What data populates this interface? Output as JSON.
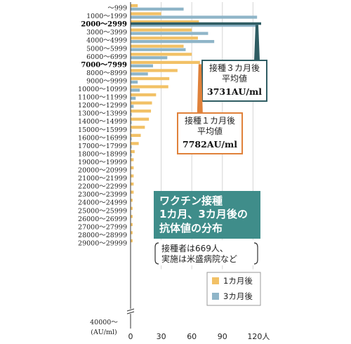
{
  "chart_data": {
    "type": "bar",
    "orientation": "horizontal",
    "categories": [
      "～999",
      "1000～1999",
      "2000～2999",
      "3000～3999",
      "4000～4999",
      "5000～5999",
      "6000～6999",
      "7000～7999",
      "8000～8999",
      "9000～9999",
      "10000～10999",
      "11000～11999",
      "12000～12999",
      "13000～13999",
      "14000～14999",
      "15000～15999",
      "16000～16999",
      "17000～17999",
      "18000～18999",
      "19000～19999",
      "20000～20999",
      "21000～21999",
      "22000～22999",
      "23000～23999",
      "24000～24999",
      "25000～25999",
      "26000～26999",
      "27000～27999",
      "28000～28999",
      "29000～29999",
      "40000～"
    ],
    "bold_categories": [
      "2000～2999",
      "7000～7999"
    ],
    "series": [
      {
        "name": "1カ月後",
        "color": "#f2c166",
        "values": [
          7,
          30,
          67,
          60,
          66,
          52,
          60,
          68,
          46,
          38,
          37,
          25,
          21,
          20,
          18,
          14,
          10,
          8,
          4,
          3,
          3,
          3,
          3,
          3,
          2,
          2,
          2,
          2,
          2,
          2,
          0
        ]
      },
      {
        "name": "3カ月後",
        "color": "#8fb5c8",
        "values": [
          52,
          124,
          125,
          76,
          82,
          54,
          36,
          22,
          17,
          7,
          9,
          5,
          3,
          1,
          1,
          1,
          1,
          1,
          1,
          0,
          0,
          0,
          0,
          0,
          0,
          0,
          0,
          0,
          0,
          0,
          0
        ]
      }
    ],
    "highlight": {
      "category": "2000～2999",
      "color": "#2f5d63",
      "value": 128
    },
    "x_ticks": [
      0,
      30,
      60,
      90,
      120
    ],
    "x_tick_labels": [
      "0",
      "30",
      "60",
      "90",
      "120人"
    ],
    "xlim": [
      0,
      128
    ],
    "y_unit_label": "(AU/ml)",
    "grid": true,
    "legend_position": "bottom-right",
    "title_lines": [
      "ワクチン接種",
      "1カ月、3カ月後の",
      "抗体値の分布"
    ],
    "note_lines": [
      "接種者は669人、",
      "実施は米盛病院など"
    ],
    "callouts": [
      {
        "series": "3カ月後",
        "lines": [
          "接種３カ月後",
          "平均値"
        ],
        "value": "3731AU/ml",
        "color": "#2f5d63"
      },
      {
        "series": "1カ月後",
        "lines": [
          "接種１カ月後",
          "平均値"
        ],
        "value": "7782AU/ml",
        "color": "#e0813a"
      }
    ]
  }
}
